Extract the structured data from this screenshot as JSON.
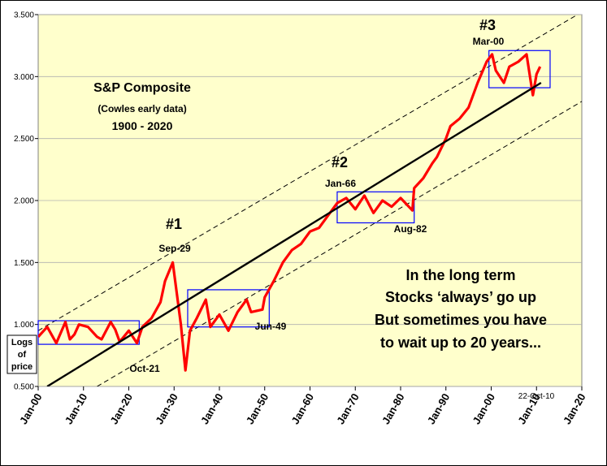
{
  "chart_data": {
    "type": "line",
    "title": "S&P Composite",
    "subtitle": "(Cowles early data)",
    "date_range": "1900 - 2020",
    "ylabel_lines": [
      "Logs",
      "of",
      "price"
    ],
    "y_tick_labels": [
      "0.500",
      "1.000",
      "1.500",
      "2.000",
      "2.500",
      "3.000",
      "3.500"
    ],
    "y_ticks": [
      0.5,
      1.0,
      1.5,
      2.0,
      2.5,
      3.0,
      3.5
    ],
    "ylim": [
      0.5,
      3.5
    ],
    "x_tick_labels": [
      "Jan-00",
      "Jan-10",
      "Jan-20",
      "Jan-30",
      "Jan-40",
      "Jan-50",
      "Jan-60",
      "Jan-70",
      "Jan-80",
      "Jan-90",
      "Jan-00",
      "Jan-10",
      "Jan-20"
    ],
    "x_ticks": [
      1900,
      1910,
      1920,
      1930,
      1940,
      1950,
      1960,
      1970,
      1980,
      1990,
      2000,
      2010,
      2020
    ],
    "xlim": [
      1900,
      2020
    ],
    "series": [
      {
        "name": "Log of S&P Composite price",
        "color": "#ff0000",
        "x": [
          1900,
          1902,
          1904,
          1906,
          1907,
          1908,
          1909,
          1911,
          1913,
          1914,
          1916,
          1917,
          1918,
          1920,
          1921.8,
          1923,
          1925,
          1927,
          1928,
          1929.7,
          1930.5,
          1931.5,
          1932.5,
          1933.5,
          1935,
          1937,
          1938,
          1940,
          1942,
          1944,
          1946,
          1947,
          1949.5,
          1950,
          1952,
          1954,
          1956,
          1958,
          1960,
          1962,
          1964,
          1966,
          1968,
          1970,
          1972,
          1974,
          1976,
          1978,
          1980,
          1982.6,
          1983,
          1985,
          1987,
          1988,
          1990,
          1991,
          1993,
          1995,
          1997,
          1999,
          2000.2,
          2001,
          2002.8,
          2004,
          2006,
          2007.8,
          2008.9,
          2009.2,
          2010,
          2010.8
        ],
        "values": [
          0.9,
          0.98,
          0.85,
          1.02,
          0.88,
          0.92,
          1.0,
          0.98,
          0.9,
          0.88,
          1.02,
          0.96,
          0.86,
          0.95,
          0.85,
          0.98,
          1.05,
          1.18,
          1.35,
          1.5,
          1.28,
          1.0,
          0.63,
          0.95,
          1.05,
          1.2,
          0.98,
          1.08,
          0.95,
          1.1,
          1.2,
          1.1,
          1.12,
          1.22,
          1.35,
          1.5,
          1.6,
          1.65,
          1.75,
          1.78,
          1.88,
          1.98,
          2.02,
          1.93,
          2.04,
          1.9,
          2.0,
          1.95,
          2.02,
          1.92,
          2.1,
          2.18,
          2.3,
          2.35,
          2.5,
          2.6,
          2.66,
          2.75,
          2.95,
          3.12,
          3.18,
          3.05,
          2.95,
          3.08,
          3.12,
          3.18,
          2.92,
          2.85,
          3.02,
          3.08
        ]
      },
      {
        "name": "Trend line",
        "color": "#000000",
        "x": [
          1902,
          2011
        ],
        "values": [
          0.5,
          2.95
        ]
      },
      {
        "name": "Upper channel",
        "color": "#000000",
        "style": "dashed",
        "x": [
          1900,
          2020
        ],
        "values": [
          0.95,
          3.52
        ]
      },
      {
        "name": "Lower channel",
        "color": "#000000",
        "style": "dashed",
        "x": [
          1913,
          2020
        ],
        "values": [
          0.5,
          2.8
        ]
      }
    ],
    "boxes": [
      {
        "name": "box-1900-1922",
        "x0": 1900,
        "x1": 1922.3,
        "y0": 0.84,
        "y1": 1.03,
        "color": "#0000ff"
      },
      {
        "name": "box-1933-1951",
        "x0": 1933,
        "x1": 1951,
        "y0": 0.98,
        "y1": 1.28,
        "color": "#0000ff"
      },
      {
        "name": "box-1966-1983",
        "x0": 1966,
        "x1": 1983,
        "y0": 1.82,
        "y1": 2.07,
        "color": "#0000ff"
      },
      {
        "name": "box-2000-2013",
        "x0": 1999.5,
        "x1": 2013,
        "y0": 2.91,
        "y1": 3.21,
        "color": "#0000ff"
      }
    ],
    "annotations": {
      "n1": "#1",
      "sep29": "Sep-29",
      "oct21": "Oct-21",
      "jun49": "Jun-49",
      "n2": "#2",
      "jan66": "Jan-66",
      "aug82": "Aug-82",
      "n3": "#3",
      "mar00": "Mar-00",
      "date_stamp": "22-Oct-10",
      "note_lines": [
        "In the long term",
        "Stocks ‘always’ go up",
        "But sometimes you have",
        "to wait up to 20 years..."
      ]
    },
    "colors": {
      "plot_background": "#ffffcc",
      "series": "#ff0000",
      "trend": "#000000",
      "boxes": "#0000ff"
    }
  }
}
